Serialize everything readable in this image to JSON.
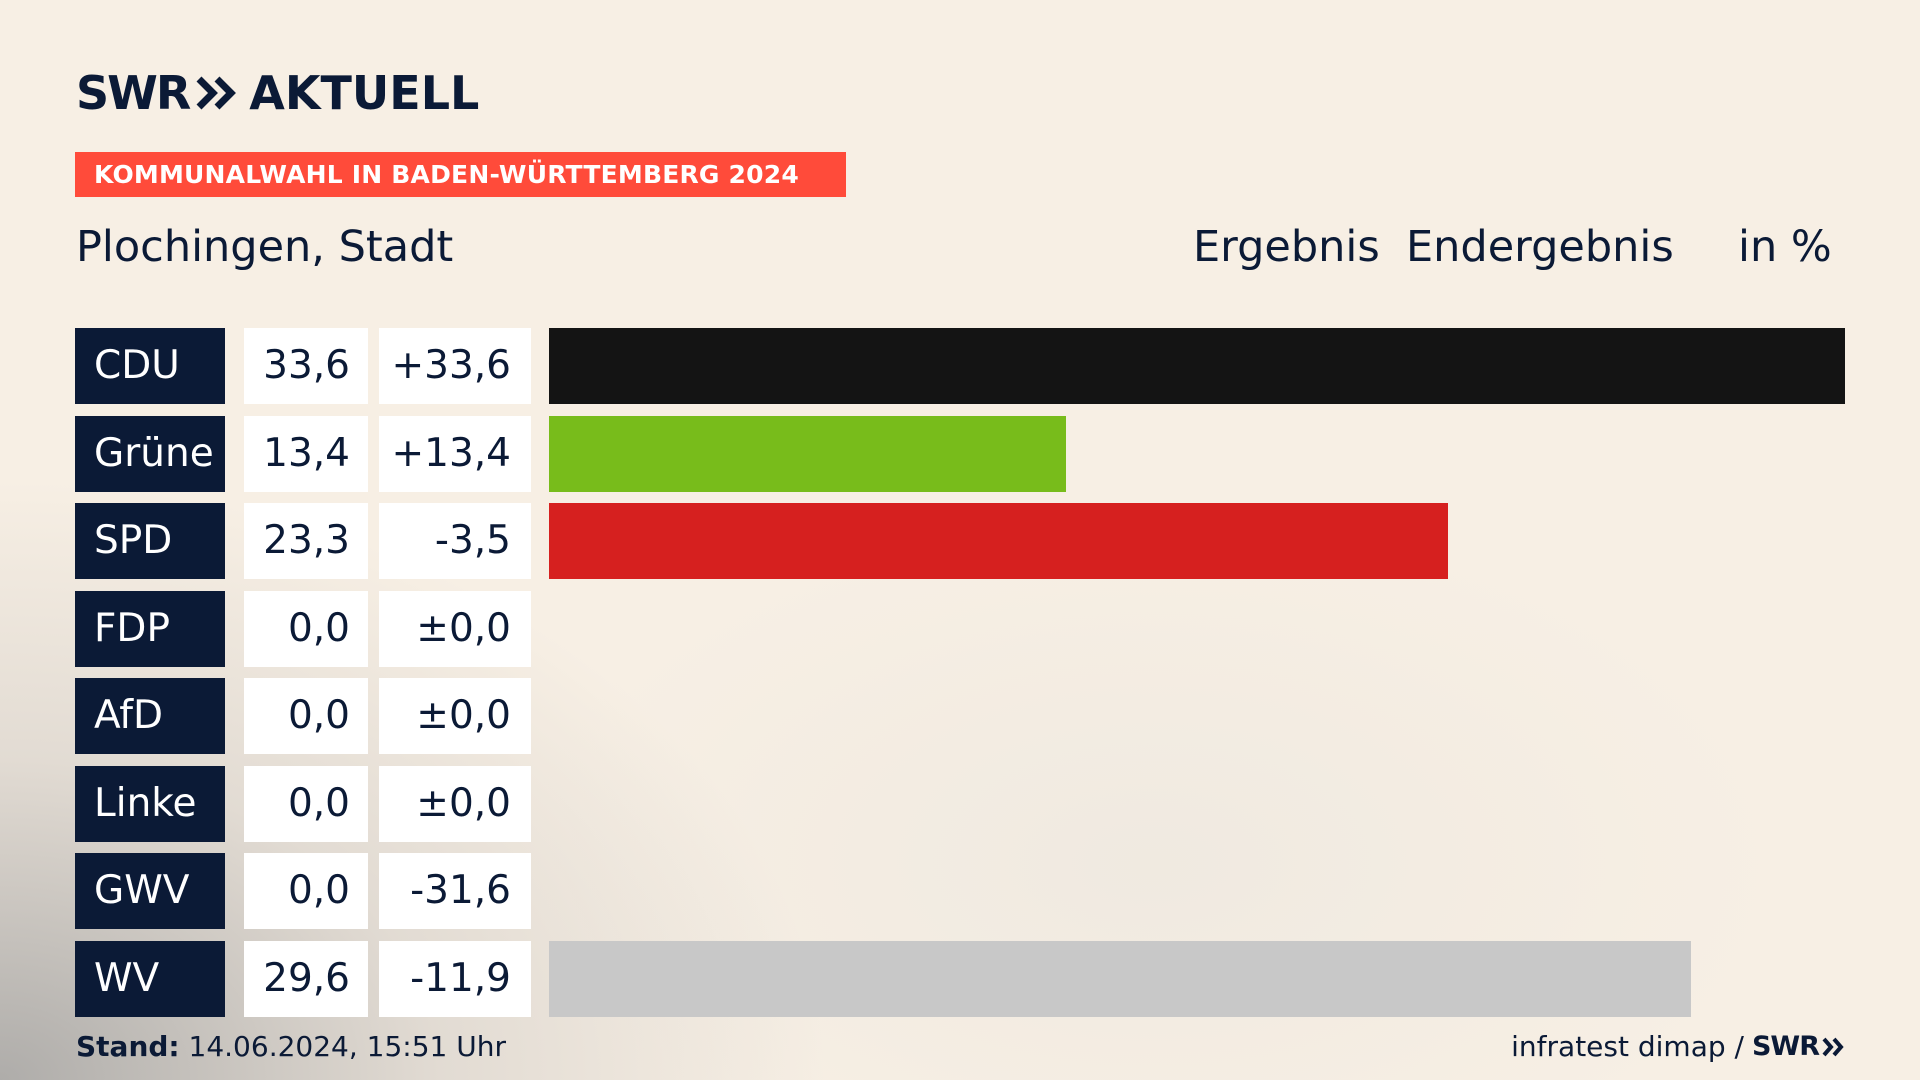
{
  "brand": {
    "logo_left": "SWR",
    "logo_right": "AKTUELL",
    "footer_logo": "SWR"
  },
  "tag": "KOMMUNALWAHL IN BADEN-WÜRTTEMBERG 2024",
  "place": "Plochingen, Stadt",
  "headers": {
    "result": "Ergebnis",
    "status": "Endergebnis",
    "unit": "in %"
  },
  "chart_data": {
    "type": "bar",
    "orientation": "horizontal",
    "categories": [
      "CDU",
      "Grüne",
      "SPD",
      "FDP",
      "AfD",
      "Linke",
      "GWV",
      "WV"
    ],
    "values": [
      33.6,
      13.4,
      23.3,
      0.0,
      0.0,
      0.0,
      0.0,
      29.6
    ],
    "value_labels": [
      "33,6",
      "13,4",
      "23,3",
      "0,0",
      "0,0",
      "0,0",
      "0,0",
      "29,6"
    ],
    "diff_labels": [
      "+33,6",
      "+13,4",
      "-3,5",
      "±0,0",
      "±0,0",
      "±0,0",
      "-31,6",
      "-11,9"
    ],
    "colors": [
      "#141414",
      "#78bc1b",
      "#d6201f",
      "#ffe000",
      "#009ee0",
      "#be3075",
      "#c8c8c8",
      "#c8c8c8"
    ],
    "xlim": [
      0,
      33.6
    ]
  },
  "footer": {
    "stand_label": "Stand:",
    "stand_value": "14.06.2024, 15:51 Uhr",
    "source": "infratest dimap /"
  }
}
